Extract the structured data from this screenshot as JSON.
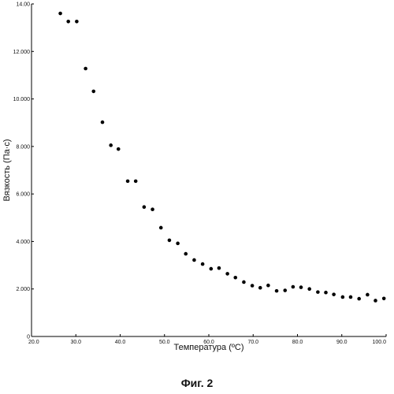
{
  "caption": "Фиг. 2",
  "chart_data": {
    "type": "scatter",
    "title": "",
    "xlabel": "Температура (ºC)",
    "ylabel": "Вязкость (Па·с)",
    "xlim": [
      20.0,
      100.0
    ],
    "ylim": [
      0,
      14.0
    ],
    "x_ticks": [
      "20.0",
      "30.0",
      "40.0",
      "50.0",
      "60.0",
      "70.0",
      "80.0",
      "90.0",
      "100.0"
    ],
    "y_ticks": [
      "0",
      "2.000",
      "4.000",
      "6.000",
      "8.000",
      "10.000",
      "12.000",
      "14.00"
    ],
    "grid": false,
    "legend": "none",
    "marker_color": "#000000",
    "series": [
      {
        "points": [
          [
            26.5,
            13.6
          ],
          [
            28.3,
            13.26
          ],
          [
            30.2,
            13.26
          ],
          [
            32.2,
            11.28
          ],
          [
            34.0,
            10.32
          ],
          [
            36.0,
            9.02
          ],
          [
            37.9,
            8.05
          ],
          [
            39.6,
            7.89
          ],
          [
            41.7,
            6.54
          ],
          [
            43.5,
            6.54
          ],
          [
            45.4,
            5.45
          ],
          [
            47.3,
            5.35
          ],
          [
            49.2,
            4.58
          ],
          [
            51.1,
            4.05
          ],
          [
            53.0,
            3.92
          ],
          [
            54.8,
            3.48
          ],
          [
            56.7,
            3.22
          ],
          [
            58.6,
            3.05
          ],
          [
            60.5,
            2.85
          ],
          [
            62.3,
            2.88
          ],
          [
            64.2,
            2.64
          ],
          [
            66.0,
            2.48
          ],
          [
            67.9,
            2.29
          ],
          [
            69.8,
            2.14
          ],
          [
            71.6,
            2.05
          ],
          [
            73.4,
            2.15
          ],
          [
            75.3,
            1.92
          ],
          [
            77.2,
            1.94
          ],
          [
            79.0,
            2.09
          ],
          [
            80.8,
            2.07
          ],
          [
            82.7,
            2.0
          ],
          [
            84.6,
            1.87
          ],
          [
            86.4,
            1.85
          ],
          [
            88.2,
            1.77
          ],
          [
            90.2,
            1.66
          ],
          [
            92.0,
            1.66
          ],
          [
            93.9,
            1.59
          ],
          [
            95.8,
            1.76
          ],
          [
            97.6,
            1.51
          ],
          [
            99.5,
            1.6
          ]
        ]
      }
    ]
  }
}
